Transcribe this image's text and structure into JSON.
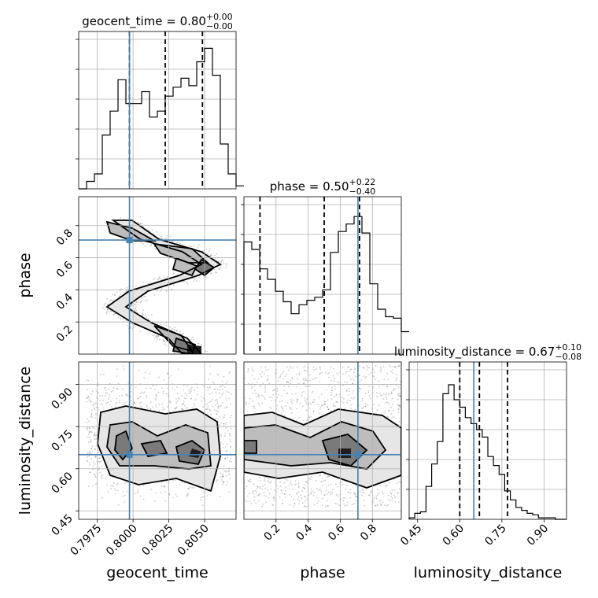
{
  "chart_data": {
    "type": "corner",
    "parameters": [
      "geocent_time",
      "phase",
      "luminosity_distance"
    ],
    "truths": {
      "geocent_time": 0.79975,
      "phase": 0.71,
      "luminosity_distance": 0.65
    },
    "panel_titles": [
      {
        "name": "geocent_time",
        "median": "0.80",
        "plus": "+0.00",
        "minus": "−0.00"
      },
      {
        "name": "phase",
        "median": "0.50",
        "plus": "+0.22",
        "minus": "−0.40"
      },
      {
        "name": "luminosity_distance",
        "median": "0.67",
        "plus": "+0.10",
        "minus": "−0.08"
      }
    ],
    "axes": {
      "geocent_time": {
        "range": [
          0.7962,
          0.8072
        ],
        "ticks": [
          0.7975,
          0.8,
          0.8025,
          0.805
        ],
        "tick_labels": [
          "0.7975",
          "0.8000",
          "0.8025",
          "0.8050"
        ]
      },
      "phase": {
        "range": [
          0.0,
          0.98
        ],
        "ticks": [
          0.2,
          0.4,
          0.6,
          0.8
        ],
        "tick_labels": [
          "0.2",
          "0.4",
          "0.6",
          "0.8"
        ]
      },
      "luminosity_distance": {
        "range": [
          0.42,
          0.98
        ],
        "ticks": [
          0.45,
          0.6,
          0.75,
          0.9
        ],
        "tick_labels": [
          "0.45",
          "0.60",
          "0.75",
          "0.90"
        ]
      }
    },
    "histograms": {
      "geocent_time": {
        "edges_start": 0.7962,
        "bin_width": 0.00055,
        "counts": [
          0,
          0.05,
          0.1,
          0.36,
          0.52,
          0.73,
          0.57,
          0.57,
          0.65,
          0.48,
          0.52,
          0.62,
          0.68,
          0.74,
          0.69,
          0.85,
          0.94,
          0.76,
          0.3,
          0.1,
          0.02
        ],
        "quantiles": [
          0.79975,
          0.80225,
          0.80485
        ]
      },
      "phase": {
        "edges_start": 0.0,
        "bin_width": 0.049,
        "counts": [
          0.75,
          0.7,
          0.57,
          0.5,
          0.42,
          0.35,
          0.27,
          0.33,
          0.36,
          0.38,
          0.43,
          0.68,
          0.82,
          0.87,
          0.92,
          0.81,
          0.47,
          0.3,
          0.25,
          0.24,
          0.15
        ],
        "quantiles": [
          0.1,
          0.5,
          0.72
        ]
      },
      "luminosity_distance": {
        "edges_start": 0.42,
        "bin_width": 0.02,
        "counts": [
          0.01,
          0.04,
          0.05,
          0.22,
          0.37,
          0.52,
          0.84,
          0.9,
          0.8,
          0.75,
          0.68,
          0.64,
          0.6,
          0.55,
          0.42,
          0.36,
          0.3,
          0.19,
          0.13,
          0.08,
          0.06,
          0.04,
          0.03,
          0.01,
          0.01,
          0.01,
          0.0,
          0.0
        ],
        "quantiles": [
          0.6,
          0.67,
          0.77
        ]
      }
    }
  }
}
